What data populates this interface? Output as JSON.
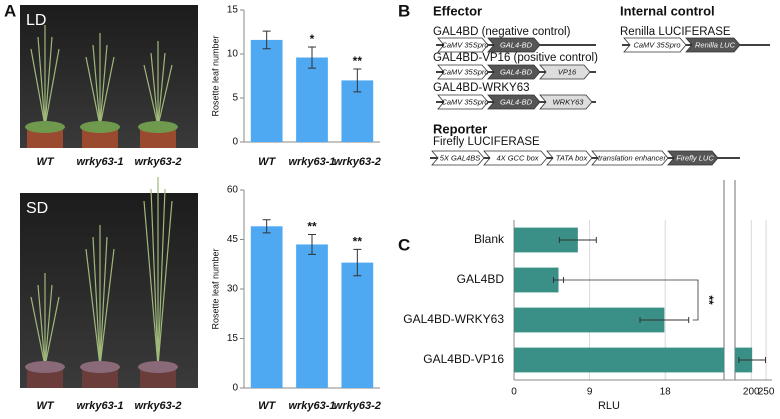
{
  "panels": {
    "a": "A",
    "b": "B",
    "c": "C"
  },
  "photos": [
    {
      "label": "LD",
      "captions": [
        "WT",
        "wrky63-1",
        "wrky63-2"
      ]
    },
    {
      "label": "SD",
      "captions": [
        "WT",
        "wrky63-1",
        "wrky63-2"
      ]
    }
  ],
  "diagram": {
    "effector_title": "Effector",
    "control_title": "Internal control",
    "reporter_title": "Reporter",
    "constructs": [
      {
        "name": "GAL4BD (negative control)",
        "parts": [
          "CaMV 35Spro",
          "GAL4-BD"
        ]
      },
      {
        "name": "GAL4BD-VP16 (positive control)",
        "parts": [
          "CaMV 35Spro",
          "GAL4-BD",
          "VP16"
        ]
      },
      {
        "name": "GAL4BD-WRKY63",
        "parts": [
          "CaMV 35Spro",
          "GAL4-BD",
          "WRKY63"
        ]
      },
      {
        "name": "Renilla LUCIFERASE",
        "parts": [
          "CaMV 35Spro",
          "Renilla LUC"
        ]
      },
      {
        "name": "Firefly LUCIFERASE",
        "parts": [
          "5X GAL4BS",
          "4X GCC box",
          "TATA box",
          "translation enhancer",
          "Firefly LUC"
        ]
      }
    ]
  },
  "chart_data": [
    {
      "type": "bar",
      "ylabel": "Rosette leaf number",
      "categories": [
        "WT",
        "wrky63-1",
        "wrky63-2"
      ],
      "values": [
        11.6,
        9.6,
        7.0
      ],
      "errors": [
        1.0,
        1.2,
        1.3
      ],
      "color": "#4ea8f2",
      "ylim": [
        0,
        15
      ],
      "yticks": [
        0,
        5,
        10,
        15
      ],
      "annotations": [
        {
          "x": "wrky63-1",
          "text": "*"
        },
        {
          "x": "wrky63-2",
          "text": "**"
        }
      ]
    },
    {
      "type": "bar",
      "ylabel": "Rosette leaf number",
      "categories": [
        "WT",
        "wrky63-1",
        "wrky63-2"
      ],
      "values": [
        49,
        43.5,
        38
      ],
      "errors": [
        2,
        3,
        4
      ],
      "color": "#4ea8f2",
      "ylim": [
        0,
        60
      ],
      "yticks": [
        0,
        15,
        30,
        45,
        60
      ],
      "annotations": [
        {
          "x": "wrky63-1",
          "text": "**"
        },
        {
          "x": "wrky63-2",
          "text": "**"
        }
      ]
    },
    {
      "type": "hbar",
      "xlabel": "RLU",
      "categories": [
        "Blank",
        "GAL4BD",
        "GAL4BD-WRKY63",
        "GAL4BD-VP16"
      ],
      "values": [
        7.6,
        5.3,
        17.9,
        203
      ],
      "errors": [
        2.2,
        0.6,
        2.9,
        45
      ],
      "color": "#3a8f87",
      "xlim": [
        0,
        25
      ],
      "xticks": [
        0,
        9,
        18
      ],
      "x2lim": [
        145,
        270
      ],
      "x2ticks": [
        200,
        250
      ],
      "grid": true,
      "significance": "**"
    }
  ]
}
